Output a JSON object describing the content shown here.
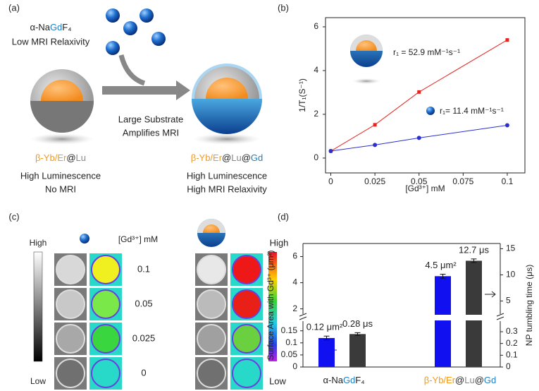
{
  "panel_a": {
    "label": "(a)",
    "top_name": [
      {
        "text": "α-Na",
        "color": "#222"
      },
      {
        "text": "Gd",
        "color": "#1f7fc0"
      },
      {
        "text": "F₄",
        "color": "#222"
      }
    ],
    "top_note": "Low MRI Relaxivity",
    "arrow_note": [
      "Large Substrate",
      "Amplifies MRI"
    ],
    "left_name": [
      {
        "text": "β-Yb/Er",
        "color": "#f39a1e"
      },
      {
        "text": "@",
        "color": "#222"
      },
      {
        "text": "Lu",
        "color": "#888"
      }
    ],
    "left_note": [
      "High Luminescence",
      "No MRI"
    ],
    "right_name": [
      {
        "text": "β-Yb/Er",
        "color": "#f39a1e"
      },
      {
        "text": "@",
        "color": "#222"
      },
      {
        "text": "Lu",
        "color": "#888"
      },
      {
        "text": "@",
        "color": "#222"
      },
      {
        "text": "Gd",
        "color": "#1f7fc0"
      }
    ],
    "right_note": [
      "High Luminescence",
      "High MRI Relaxivity"
    ]
  },
  "panel_c": {
    "label": "(c)",
    "left_bar": [
      "High",
      "Low"
    ],
    "right_bar": [
      "High",
      "Low"
    ],
    "conc_label": "[Gd³⁺] mM",
    "concentrations": [
      "0.1",
      "0.05",
      "0.025",
      "0"
    ]
  },
  "chart_data": [
    {
      "type": "line",
      "label": "(b)",
      "x_label": "[Gd³⁺] mM",
      "y_label": "1/T₁(S⁻¹)",
      "xlim": [
        -0.003,
        0.11
      ],
      "xticks": [
        0,
        0.025,
        0.05,
        0.075,
        0.1
      ],
      "ylim": [
        -0.68,
        6.42
      ],
      "yticks": [
        0,
        2,
        4,
        6
      ],
      "x": [
        0,
        0.025,
        0.05,
        0.1
      ],
      "series": [
        {
          "name": "r₁ = 52.9 mM⁻¹s⁻¹",
          "color": "#e8231f",
          "marker": "square",
          "values": [
            0.32,
            1.52,
            3.02,
            5.4
          ]
        },
        {
          "name": "r₁= 11.4 mM⁻¹s⁻¹",
          "color": "#2b2fd0",
          "marker": "circle",
          "values": [
            0.32,
            0.6,
            0.92,
            1.5
          ]
        }
      ]
    },
    {
      "type": "bar",
      "label": "(d)",
      "y_label": "Surface Area with Gd³⁺ (μm²)",
      "y2_label": "NP tumbling time (μs)",
      "categories": [
        [
          {
            "text": "α-Na",
            "color": "#222"
          },
          {
            "text": "Gd",
            "color": "#1f7fc0"
          },
          {
            "text": "F₄",
            "color": "#222"
          }
        ],
        [
          {
            "text": "β-Yb/Er",
            "color": "#f39a1e"
          },
          {
            "text": "@",
            "color": "#222"
          },
          {
            "text": "Lu",
            "color": "#888"
          },
          {
            "text": "@",
            "color": "#222"
          },
          {
            "text": "Gd",
            "color": "#1f7fc0"
          }
        ]
      ],
      "ylim_lower": [
        0,
        0.19
      ],
      "yticks_lower": [
        0,
        0.05,
        0.1,
        0.15
      ],
      "ylim_upper": [
        1.6,
        7
      ],
      "yticks_upper": [
        2,
        4,
        6
      ],
      "y2lim_lower": [
        0,
        0.39
      ],
      "y2ticks_lower": [
        0,
        0.1,
        0.2,
        0.3
      ],
      "y2lim_upper": [
        2.5,
        16
      ],
      "y2ticks_upper": [
        5,
        10,
        15
      ],
      "series": [
        {
          "color": "#1010f0",
          "values": [
            0.12,
            4.5
          ],
          "errors": [
            0.008,
            0.15
          ],
          "value_labels": [
            "0.12 μm²",
            "4.5 μm²"
          ]
        },
        {
          "color": "#3a3a3a",
          "axis": "y2",
          "values": [
            0.28,
            12.7
          ],
          "errors": [
            0.012,
            0.35
          ],
          "value_labels": [
            "0.28 μs",
            "12.7 μs"
          ]
        }
      ]
    }
  ]
}
